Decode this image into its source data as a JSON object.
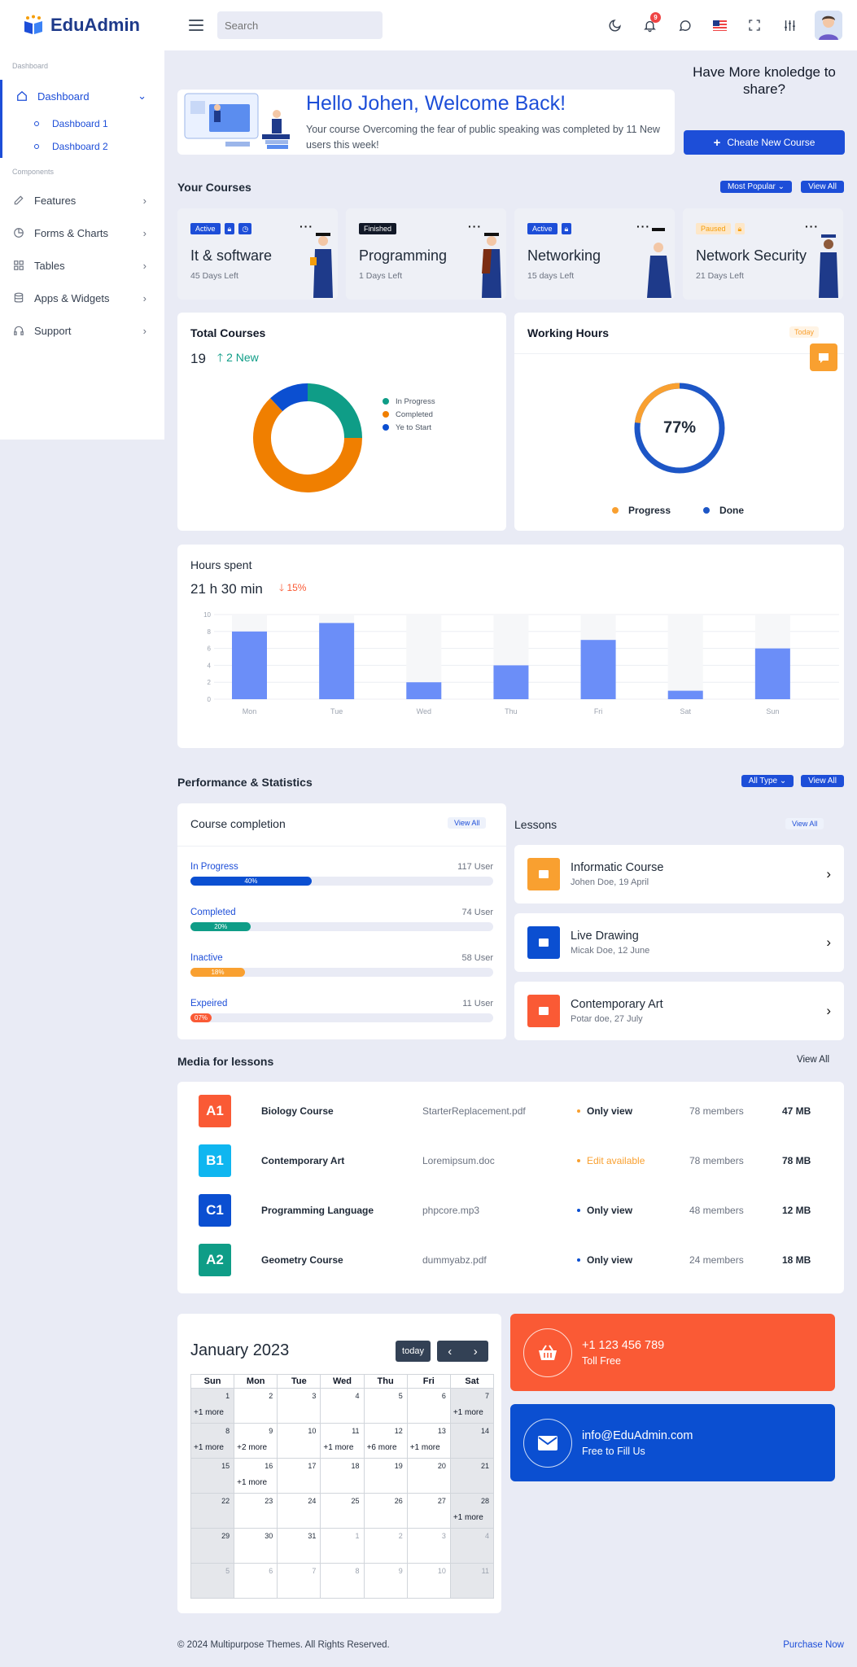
{
  "brand": {
    "name": "EduAdmin"
  },
  "search": {
    "placeholder": "Search"
  },
  "header": {
    "notification_count": "9"
  },
  "sidebar": {
    "section_dashboard": "Dashboard",
    "dashboard": "Dashboard",
    "sub_items": [
      "Dashboard 1",
      "Dashboard 2"
    ],
    "section_components": "Components",
    "items": [
      "Features",
      "Forms & Charts",
      "Tables",
      "Apps & Widgets",
      "Support"
    ]
  },
  "welcome": {
    "title": "Hello Johen, Welcome Back!",
    "text": "Your course Overcoming the fear of public speaking was completed by 11 New users this week!",
    "share_text": "Have More knoledge to share?",
    "create_button": "Cheate New Course"
  },
  "courses": {
    "title": "Your Courses",
    "filter": "Most Popular",
    "view_all": "View All",
    "items": [
      {
        "tag": "Active",
        "name": "It & software",
        "days": "45 Days Left"
      },
      {
        "tag": "Finished",
        "name": "Programming",
        "days": "1 Days Left"
      },
      {
        "tag": "Active",
        "name": "Networking",
        "days": "15 days Left"
      },
      {
        "tag": "Paused",
        "name": "Network Security",
        "days": "21 Days Left"
      }
    ]
  },
  "total_courses": {
    "title": "Total Courses",
    "count": "19",
    "new_label": "2 New",
    "legend": [
      "In Progress",
      "Completed",
      "Ye to Start"
    ],
    "colors": [
      "#0f9d87",
      "#f07f00",
      "#0b4fd1"
    ],
    "values": [
      25,
      63,
      12
    ]
  },
  "working_hours": {
    "title": "Working Hours",
    "filter": "Today",
    "percent_label": "77%",
    "percent": 77,
    "legend": [
      "Progress",
      "Done"
    ],
    "colors": [
      "#f9a030",
      "#1d56c6"
    ]
  },
  "hours_spent": {
    "title": "Hours spent",
    "total": "21 h 30 min",
    "change": "15%"
  },
  "chart_data": {
    "type": "bar",
    "categories": [
      "Mon",
      "Tue",
      "Wed",
      "Thu",
      "Fri",
      "Sat",
      "Sun"
    ],
    "values": [
      8,
      9,
      2,
      4,
      7,
      1,
      6
    ],
    "ylim": [
      0,
      10
    ],
    "yticks": [
      "0",
      "2",
      "4",
      "6",
      "8",
      "10"
    ],
    "color": "#6b8ef8"
  },
  "performance": {
    "title": "Performance & Statistics",
    "filter": "All Type",
    "view_all": "View All",
    "completion_title": "Course completion",
    "completion_view_all": "View All",
    "rows": [
      {
        "label": "In Progress",
        "users": "117 User",
        "pct": "40%",
        "value": 40,
        "color": "#0b4fd1"
      },
      {
        "label": "Completed",
        "users": "74 User",
        "pct": "20%",
        "value": 20,
        "color": "#0f9d87"
      },
      {
        "label": "Inactive",
        "users": "58 User",
        "pct": "18%",
        "value": 18,
        "color": "#f9a030"
      },
      {
        "label": "Expeired",
        "users": "11 User",
        "pct": "07%",
        "value": 7,
        "color": "#fa5a35"
      }
    ]
  },
  "lessons": {
    "title": "Lessons",
    "view_all": "View All",
    "items": [
      {
        "name": "Informatic Course",
        "meta": "Johen Doe, 19 April",
        "color": "#f9a030"
      },
      {
        "name": "Live Drawing",
        "meta": "Micak Doe, 12 June",
        "color": "#0b4fd1"
      },
      {
        "name": "Contemporary Art",
        "meta": "Potar doe, 27 July",
        "color": "#fa5a35"
      }
    ]
  },
  "media": {
    "title": "Media for lessons",
    "view_all": "View All",
    "rows": [
      {
        "badge": "A1",
        "color": "#fa5a35",
        "name": "Biology Course",
        "file": "StarterReplacement.pdf",
        "access": "Only view",
        "access_color": "#f9a030",
        "members": "78 members",
        "size": "47 MB"
      },
      {
        "badge": "B1",
        "color": "#0fb6f0",
        "name": "Contemporary Art",
        "file": "Loremipsum.doc",
        "access": "Edit available",
        "access_color": "#f9a030",
        "members": "78 members",
        "size": "78 MB"
      },
      {
        "badge": "C1",
        "color": "#0b4fd1",
        "name": "Programming Language",
        "file": "phpcore.mp3",
        "access": "Only view",
        "access_color": "#0b4fd1",
        "members": "48 members",
        "size": "12 MB"
      },
      {
        "badge": "A2",
        "color": "#0f9d87",
        "name": "Geometry Course",
        "file": "dummyabz.pdf",
        "access": "Only view",
        "access_color": "#0b4fd1",
        "members": "24 members",
        "size": "18 MB"
      }
    ]
  },
  "calendar": {
    "title": "January 2023",
    "today": "today",
    "days": [
      "Sun",
      "Mon",
      "Tue",
      "Wed",
      "Thu",
      "Fri",
      "Sat"
    ],
    "weeks": [
      [
        [
          "1",
          "+1 more"
        ],
        [
          "2",
          ""
        ],
        [
          "3",
          ""
        ],
        [
          "4",
          ""
        ],
        [
          "5",
          ""
        ],
        [
          "6",
          ""
        ],
        [
          "7",
          "+1 more"
        ]
      ],
      [
        [
          "8",
          "+1 more"
        ],
        [
          "9",
          "+2 more"
        ],
        [
          "10",
          ""
        ],
        [
          "11",
          "+1 more"
        ],
        [
          "12",
          "+6 more"
        ],
        [
          "13",
          "+1 more"
        ],
        [
          "14",
          ""
        ]
      ],
      [
        [
          "15",
          ""
        ],
        [
          "16",
          "+1 more"
        ],
        [
          "17",
          ""
        ],
        [
          "18",
          ""
        ],
        [
          "19",
          ""
        ],
        [
          "20",
          ""
        ],
        [
          "21",
          ""
        ]
      ],
      [
        [
          "22",
          ""
        ],
        [
          "23",
          ""
        ],
        [
          "24",
          ""
        ],
        [
          "25",
          ""
        ],
        [
          "26",
          ""
        ],
        [
          "27",
          ""
        ],
        [
          "28",
          "+1 more"
        ]
      ],
      [
        [
          "29",
          ""
        ],
        [
          "30",
          ""
        ],
        [
          "31",
          ""
        ],
        [
          "1",
          ""
        ],
        [
          "2",
          ""
        ],
        [
          "3",
          ""
        ],
        [
          "4",
          ""
        ]
      ],
      [
        [
          "5",
          ""
        ],
        [
          "6",
          ""
        ],
        [
          "7",
          ""
        ],
        [
          "8",
          ""
        ],
        [
          "9",
          ""
        ],
        [
          "10",
          ""
        ],
        [
          "11",
          ""
        ]
      ]
    ]
  },
  "contacts": [
    {
      "big": "+1 123 456 789",
      "small": "Toll Free",
      "color": "#fa5a35"
    },
    {
      "big": "info@EduAdmin.com",
      "small": "Free to Fill Us",
      "color": "#0b4fd1"
    }
  ],
  "footer": {
    "copyright": "© 2024 Multipurpose Themes. All Rights Reserved.",
    "link": "Purchase Now"
  }
}
